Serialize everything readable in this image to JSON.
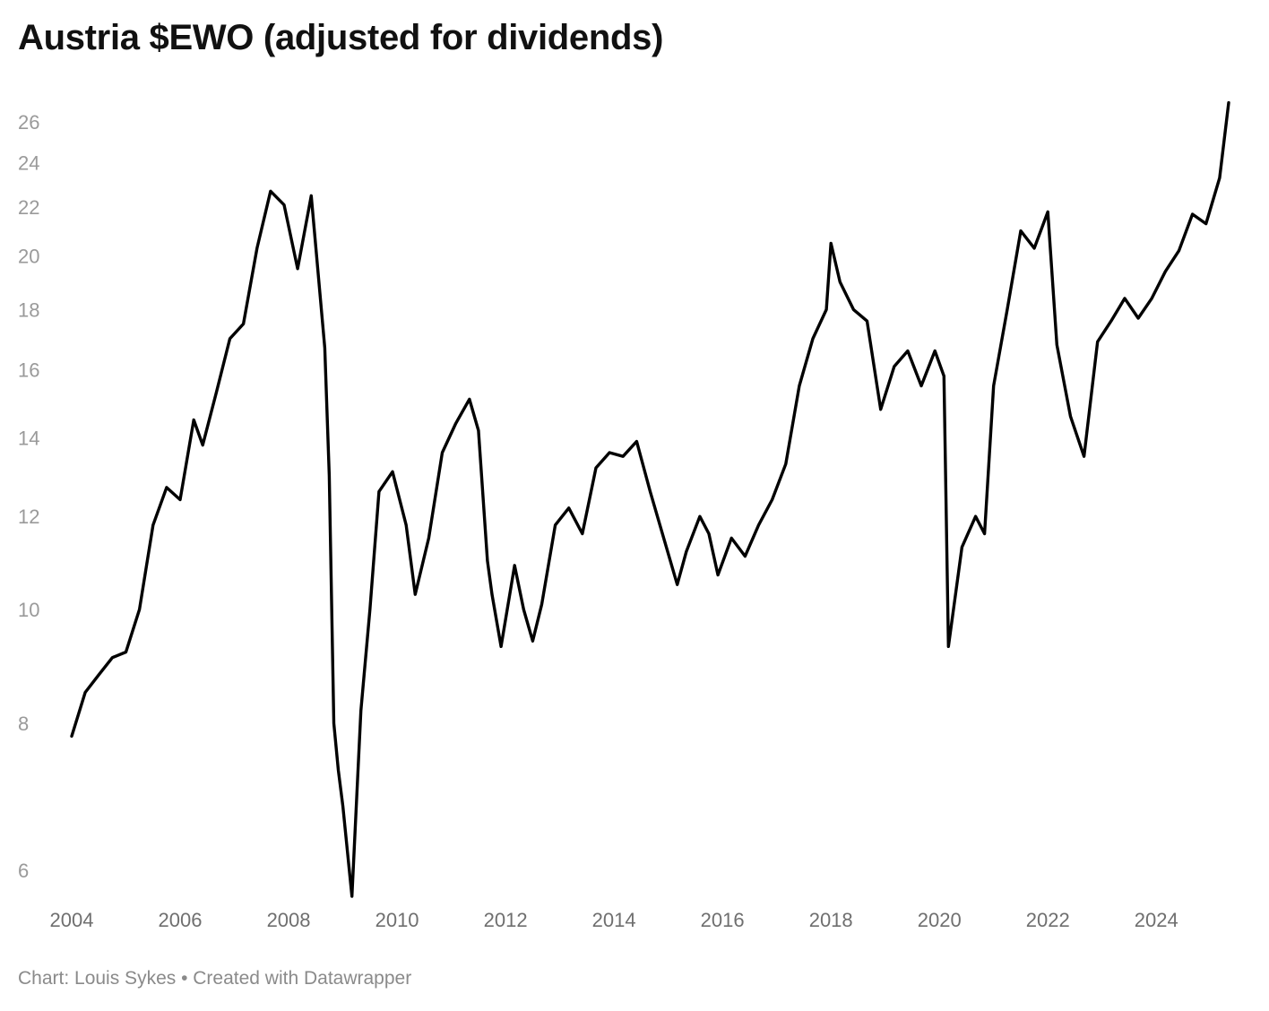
{
  "chart_data": {
    "type": "line",
    "title": "Austria $EWO (adjusted for dividends)",
    "xlabel": "",
    "ylabel": "",
    "y_scale": "log",
    "grid": false,
    "line_color": "#000000",
    "xlim": [
      "2004-01",
      "2025-06"
    ],
    "ylim": [
      5.7,
      27.7
    ],
    "y_ticks": [
      "6",
      "8",
      "10",
      "12",
      "14",
      "16",
      "18",
      "20",
      "22",
      "24",
      "26"
    ],
    "x_ticks": [
      "2004",
      "2006",
      "2008",
      "2010",
      "2012",
      "2014",
      "2016",
      "2018",
      "2020",
      "2022",
      "2024"
    ],
    "series": [
      {
        "x": [
          "2004-01",
          "2004-04",
          "2004-07",
          "2004-10",
          "2005-01",
          "2005-04",
          "2005-07",
          "2005-10",
          "2006-01",
          "2006-04",
          "2006-06",
          "2006-09",
          "2006-12",
          "2007-03",
          "2007-06",
          "2007-09",
          "2007-12",
          "2008-03",
          "2008-06",
          "2008-09",
          "2008-10",
          "2008-11",
          "2008-12",
          "2009-01",
          "2009-03",
          "2009-05",
          "2009-07",
          "2009-09",
          "2009-12",
          "2010-03",
          "2010-05",
          "2010-08",
          "2010-11",
          "2011-02",
          "2011-05",
          "2011-07",
          "2011-09",
          "2011-10",
          "2011-12",
          "2012-03",
          "2012-05",
          "2012-07",
          "2012-09",
          "2012-12",
          "2013-03",
          "2013-06",
          "2013-09",
          "2013-12",
          "2014-03",
          "2014-06",
          "2014-09",
          "2014-12",
          "2015-03",
          "2015-05",
          "2015-08",
          "2015-10",
          "2015-12",
          "2016-03",
          "2016-06",
          "2016-09",
          "2016-12",
          "2017-03",
          "2017-06",
          "2017-09",
          "2017-12",
          "2018-01",
          "2018-03",
          "2018-06",
          "2018-09",
          "2018-12",
          "2019-03",
          "2019-06",
          "2019-09",
          "2019-12",
          "2020-02",
          "2020-03",
          "2020-06",
          "2020-09",
          "2020-11",
          "2021-01",
          "2021-04",
          "2021-07",
          "2021-10",
          "2022-01",
          "2022-03",
          "2022-06",
          "2022-09",
          "2022-12",
          "2023-03",
          "2023-06",
          "2023-09",
          "2023-12",
          "2024-03",
          "2024-06",
          "2024-09",
          "2024-12",
          "2025-03",
          "2025-05"
        ],
        "values": [
          7.8,
          8.5,
          8.8,
          9.1,
          9.2,
          10.0,
          11.8,
          12.7,
          12.4,
          14.5,
          13.8,
          15.3,
          17.0,
          17.5,
          20.3,
          22.7,
          22.1,
          19.5,
          22.5,
          16.7,
          13.0,
          8.0,
          7.3,
          6.8,
          5.7,
          8.2,
          10.0,
          12.6,
          13.1,
          11.8,
          10.3,
          11.5,
          13.6,
          14.4,
          15.1,
          14.2,
          11.0,
          10.3,
          9.3,
          10.9,
          10.0,
          9.4,
          10.1,
          11.8,
          12.2,
          11.6,
          13.2,
          13.6,
          13.5,
          13.9,
          12.6,
          11.5,
          10.5,
          11.2,
          12.0,
          11.6,
          10.7,
          11.5,
          11.1,
          11.8,
          12.4,
          13.3,
          15.5,
          17.0,
          18.0,
          20.5,
          19.0,
          18.0,
          17.6,
          14.8,
          16.1,
          16.6,
          15.5,
          16.6,
          15.8,
          9.3,
          11.3,
          12.0,
          11.6,
          15.5,
          18.0,
          21.0,
          20.3,
          21.8,
          16.8,
          14.6,
          13.5,
          16.9,
          17.6,
          18.4,
          17.7,
          18.4,
          19.4,
          20.2,
          21.7,
          21.3,
          23.3,
          27.0
        ]
      }
    ]
  },
  "footer": "Chart: Louis Sykes • Created with Datawrapper"
}
